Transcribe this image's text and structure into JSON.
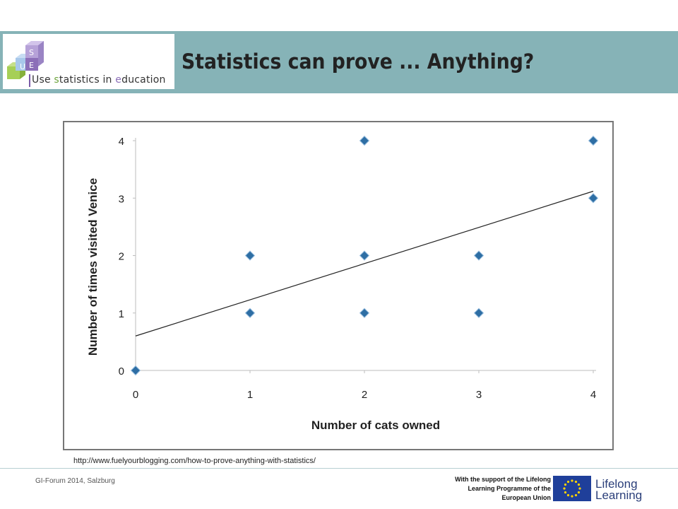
{
  "logo": {
    "text_parts": [
      "Use ",
      "s",
      "tatistics in ",
      "e",
      "ducation"
    ],
    "cube_letters": [
      "U",
      "S",
      "E"
    ]
  },
  "title": "Statistics can prove ... Anything?",
  "chart_data": {
    "type": "scatter",
    "xlabel": "Number of cats owned",
    "ylabel": "Number of times visited Venice",
    "xlim": [
      0,
      4
    ],
    "ylim": [
      0,
      4
    ],
    "x_ticks": [
      "0",
      "1",
      "2",
      "3",
      "4"
    ],
    "y_ticks": [
      "0",
      "1",
      "2",
      "3",
      "4"
    ],
    "grid": false,
    "legend": "none",
    "points": [
      {
        "x": 0,
        "y": 0
      },
      {
        "x": 1,
        "y": 1
      },
      {
        "x": 1,
        "y": 2
      },
      {
        "x": 2,
        "y": 1
      },
      {
        "x": 2,
        "y": 2
      },
      {
        "x": 2,
        "y": 4
      },
      {
        "x": 3,
        "y": 1
      },
      {
        "x": 3,
        "y": 2
      },
      {
        "x": 4,
        "y": 3
      },
      {
        "x": 4,
        "y": 4
      }
    ],
    "trendline": {
      "intercept": 0.6,
      "slope": 0.63
    },
    "marker_color": "#2e6ea4",
    "line_color": "#222222"
  },
  "source_url": "http://www.fuelyourblogging.com/how-to-prove-anything-with-statistics/",
  "footer": {
    "left": "GI-Forum 2014, Salzburg",
    "support_lines": [
      "With the support of the Lifelong",
      "Learning Programme of the",
      "European Union"
    ],
    "programme_lines": [
      "Lifelong",
      "Learning"
    ]
  }
}
